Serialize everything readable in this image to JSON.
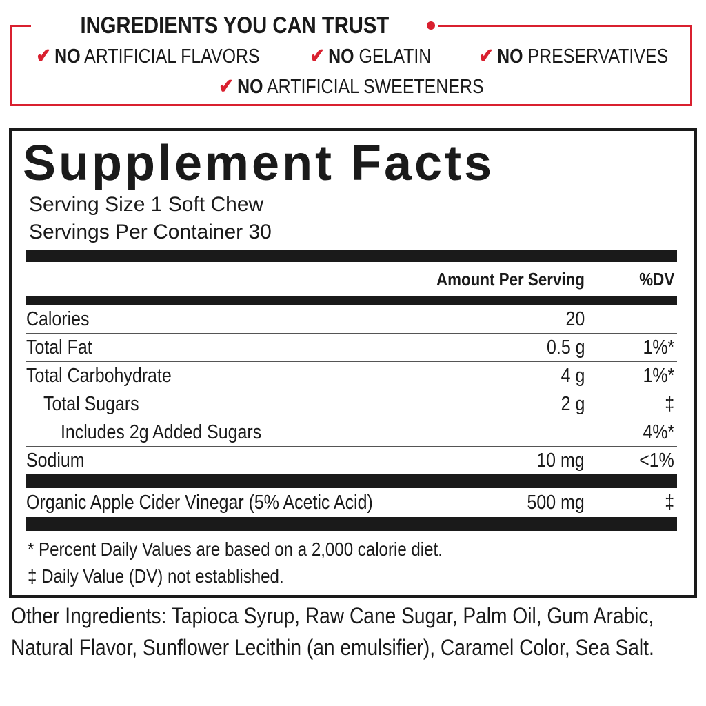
{
  "trust_banner": {
    "title": "INGREDIENTS YOU CAN TRUST",
    "accent_color": "#d9202f",
    "claims": [
      {
        "bold": "NO",
        "text": "ARTIFICIAL FLAVORS"
      },
      {
        "bold": "NO",
        "text": "GELATIN"
      },
      {
        "bold": "NO",
        "text": "PRESERVATIVES"
      },
      {
        "bold": "NO",
        "text": "ARTIFICIAL SWEETENERS"
      }
    ]
  },
  "facts": {
    "title": "Supplement Facts",
    "serving_size": "Serving Size 1 Soft Chew",
    "servings_per_container": "Servings Per Container 30",
    "header": {
      "amount": "Amount Per Serving",
      "dv": "%DV"
    },
    "rows": [
      {
        "label": "Calories",
        "amount": "20",
        "dv": ""
      },
      {
        "label": "Total Fat",
        "amount": "0.5 g",
        "dv": "1%*"
      },
      {
        "label": "Total Carbohydrate",
        "amount": "4 g",
        "dv": "1%*"
      },
      {
        "label": "Total Sugars",
        "amount": "2 g",
        "dv": "‡"
      },
      {
        "label": "Includes 2g Added Sugars",
        "amount": "",
        "dv": "4%*"
      },
      {
        "label": "Sodium",
        "amount": "10 mg",
        "dv": "<1%"
      }
    ],
    "ingredient": {
      "label": "Organic Apple Cider Vinegar (5% Acetic Acid)",
      "amount": "500 mg",
      "dv": "‡"
    },
    "footnotes": [
      "* Percent Daily Values are based on a 2,000 calorie diet.",
      "‡ Daily Value (DV) not established."
    ]
  },
  "other_ingredients": "Other Ingredients: Tapioca Syrup, Raw Cane Sugar, Palm Oil, Gum Arabic, Natural Flavor, Sunflower Lecithin (an emulsifier), Caramel Color, Sea Salt."
}
